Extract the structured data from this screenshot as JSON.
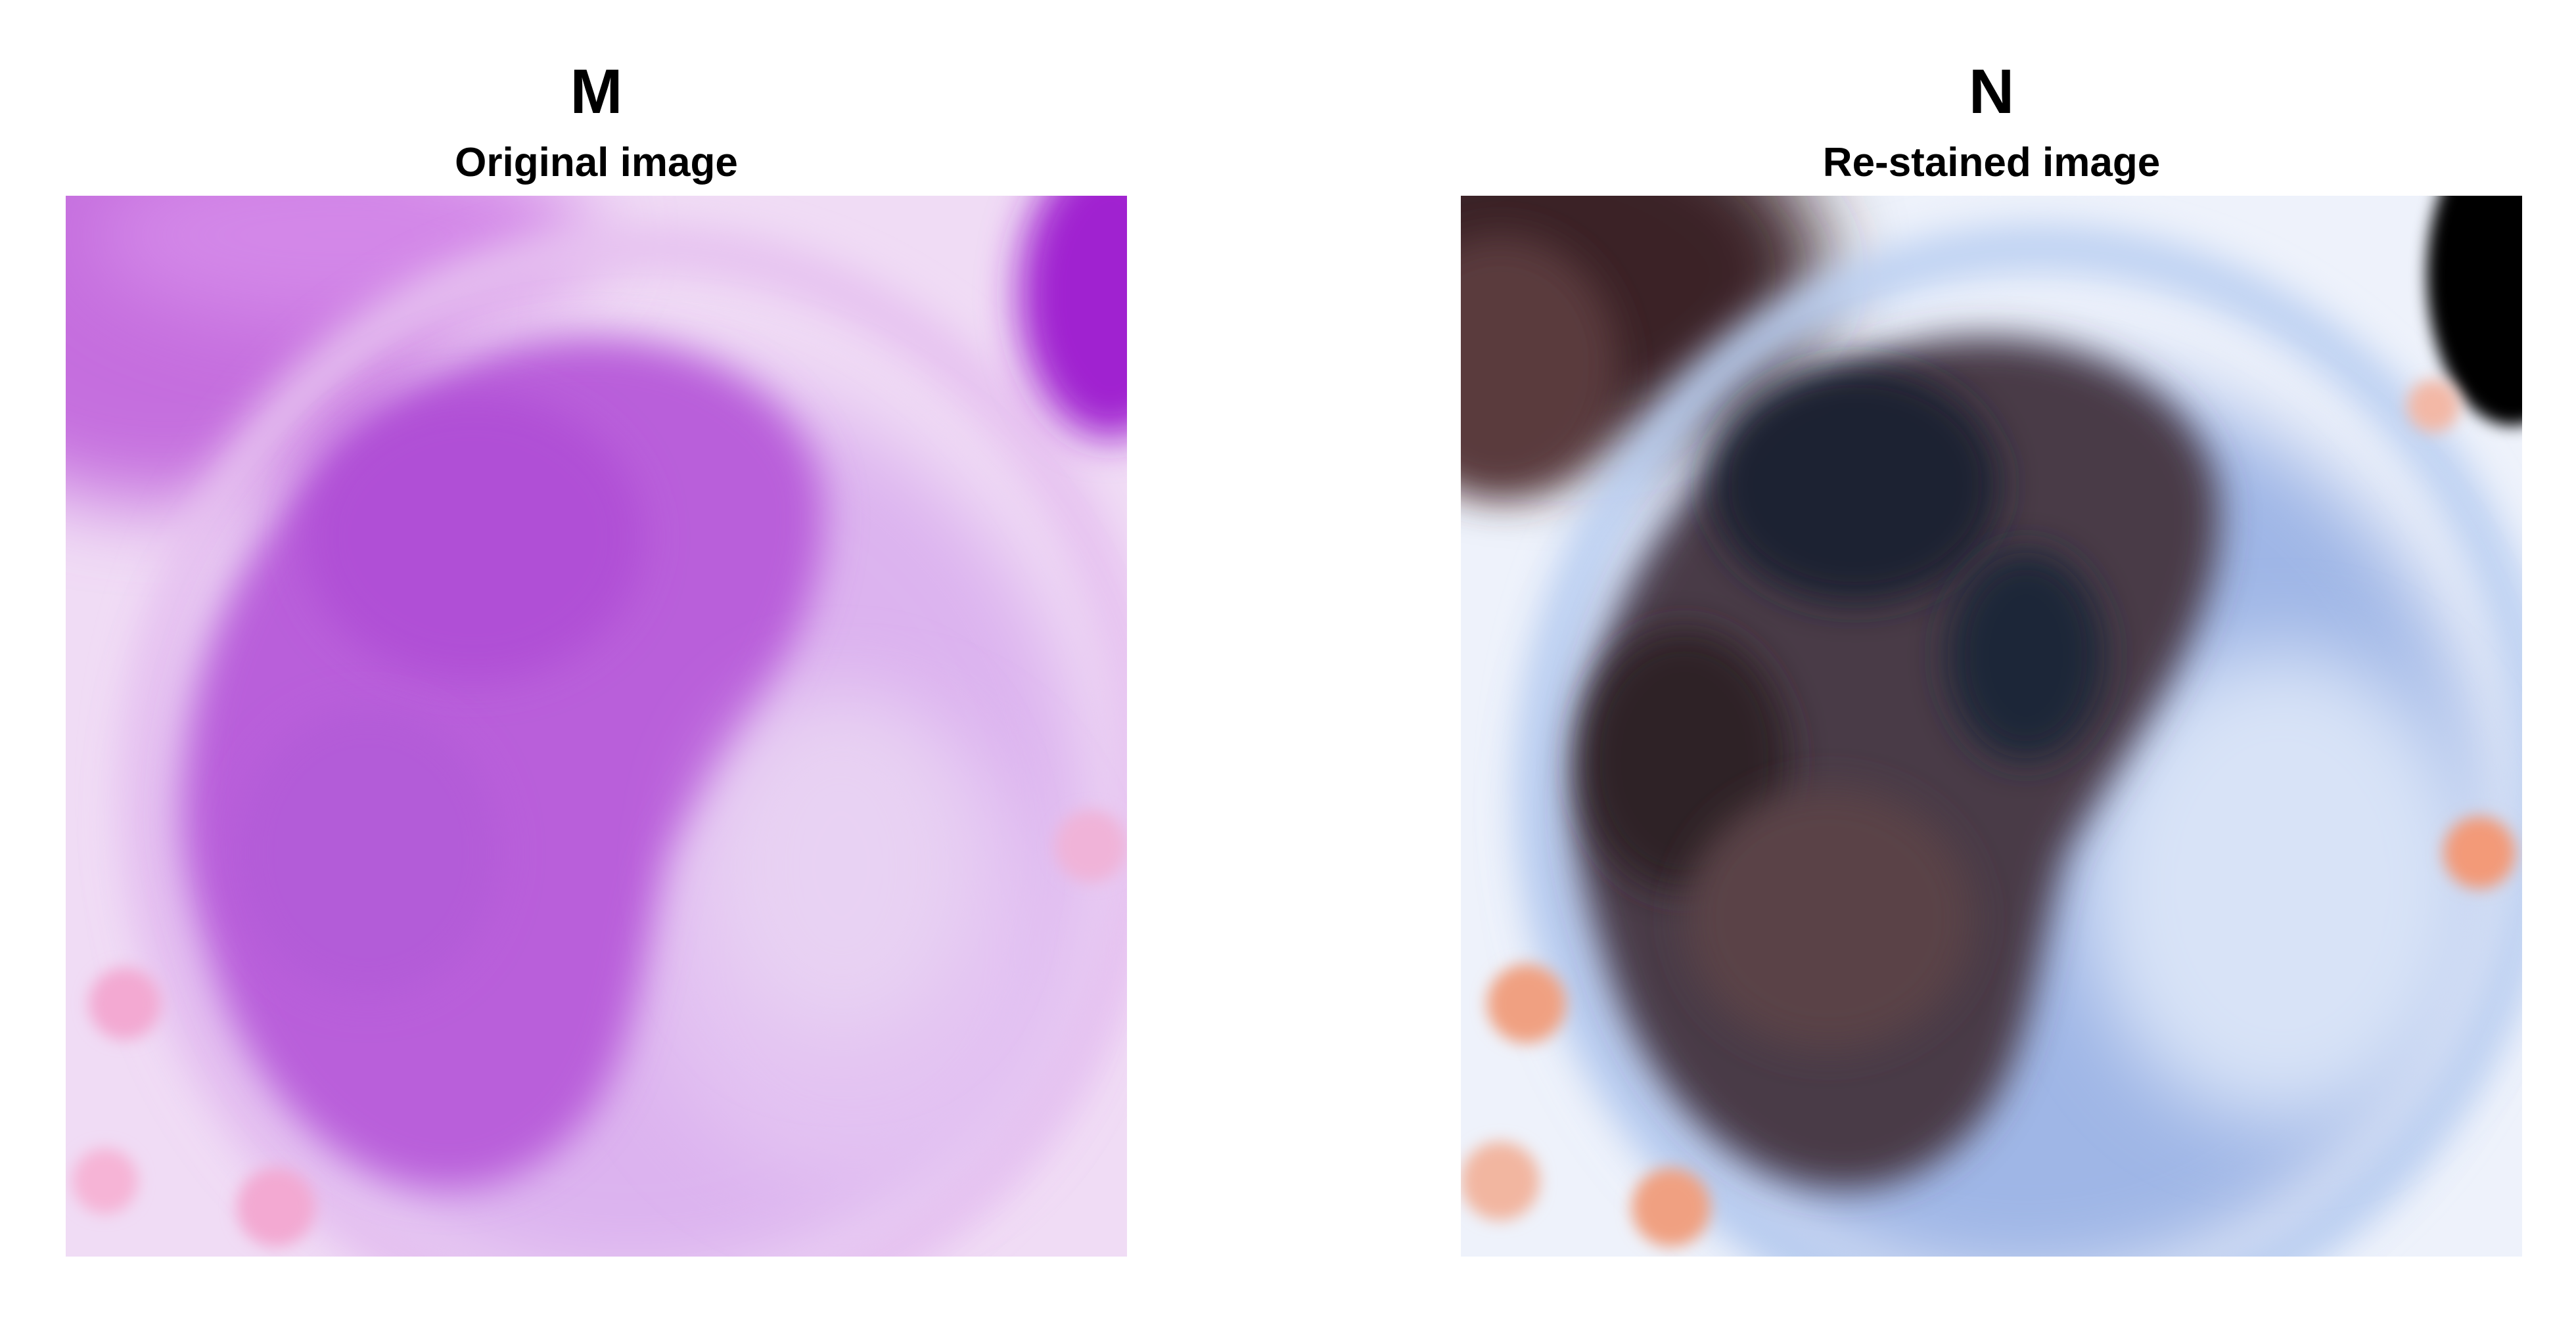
{
  "panels": [
    {
      "letter": "M",
      "subtitle": "Original image",
      "image": "microscopy-original-purple-cell",
      "colors": {
        "nucleus": "#b95fda",
        "cytoplasm": "#dcb3ef",
        "background": "#f2dff6",
        "edge-highlight": "#a020d0",
        "pink-spot": "#f3a9d2"
      }
    },
    {
      "letter": "N",
      "subtitle": "Re-stained image",
      "image": "microscopy-restained-dark-cell",
      "colors": {
        "nucleus": "#3b2b33",
        "cytoplasm": "#8fa8e0",
        "background": "#eaf0fb",
        "dark-corner": "#000000",
        "orange-spot": "#f0a081"
      }
    }
  ]
}
